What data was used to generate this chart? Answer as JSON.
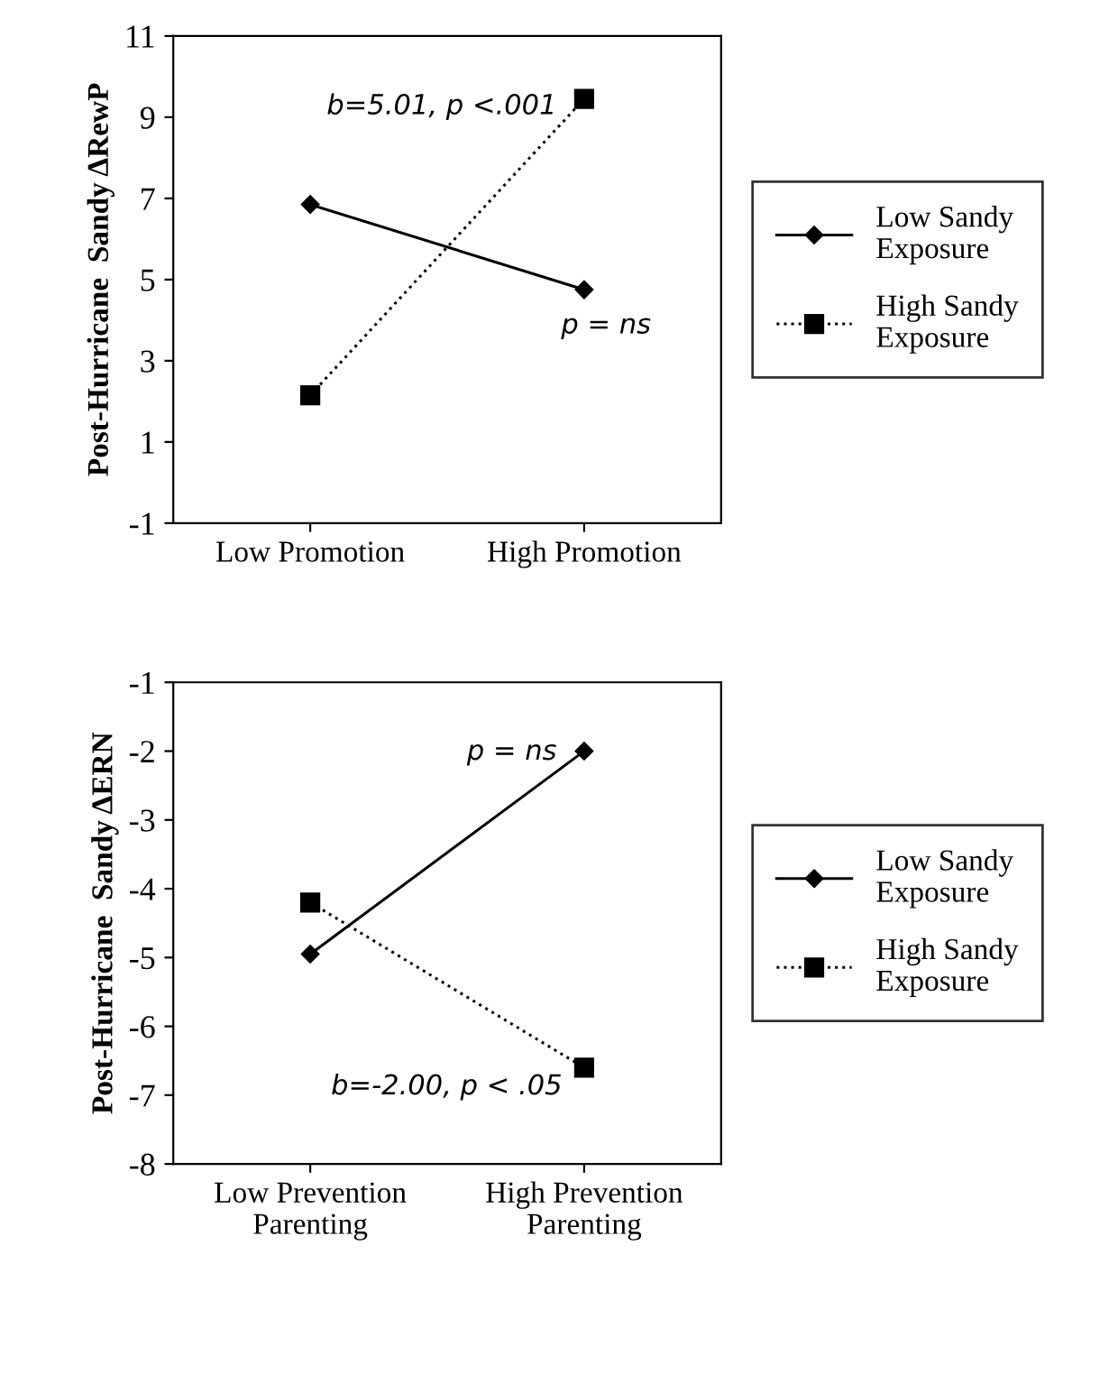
{
  "chart_data": [
    {
      "type": "line",
      "ylabel": "Post-Hurricane  Sandy ΔRewP",
      "categories": [
        "Low Promotion",
        "High Promotion"
      ],
      "series": [
        {
          "name": "Low Sandy\nExposure",
          "color": "#000000",
          "values": [
            6.85,
            4.75
          ],
          "marker": "diamond",
          "line_style": "solid"
        },
        {
          "name": "High Sandy\nExposure",
          "color": "#000000",
          "values": [
            2.15,
            9.45
          ],
          "marker": "square",
          "line_style": "dotted"
        }
      ],
      "ylim": [
        -1,
        11
      ],
      "yticks": [
        -1,
        1,
        3,
        5,
        7,
        9,
        11
      ],
      "grid": false,
      "legend": "right",
      "annotations": [
        "b=5.01, p <.001",
        "p = ns"
      ]
    },
    {
      "type": "line",
      "ylabel": "Post-Hurricane  Sandy ΔERN",
      "categories": [
        "Low Prevention\nParenting",
        "High Prevention\nParenting"
      ],
      "series": [
        {
          "name": "Low Sandy\nExposure",
          "color": "#000000",
          "values": [
            -4.95,
            -2.0
          ],
          "marker": "diamond",
          "line_style": "solid"
        },
        {
          "name": "High Sandy\nExposure",
          "color": "#000000",
          "values": [
            -4.2,
            -6.6
          ],
          "marker": "square",
          "line_style": "dotted"
        }
      ],
      "ylim": [
        -8,
        -1
      ],
      "yticks": [
        -8,
        -7,
        -6,
        -5,
        -4,
        -3,
        -2,
        -1
      ],
      "grid": false,
      "legend": "right",
      "annotations": [
        "p = ns",
        "b=-2.00, p < .05"
      ]
    }
  ]
}
